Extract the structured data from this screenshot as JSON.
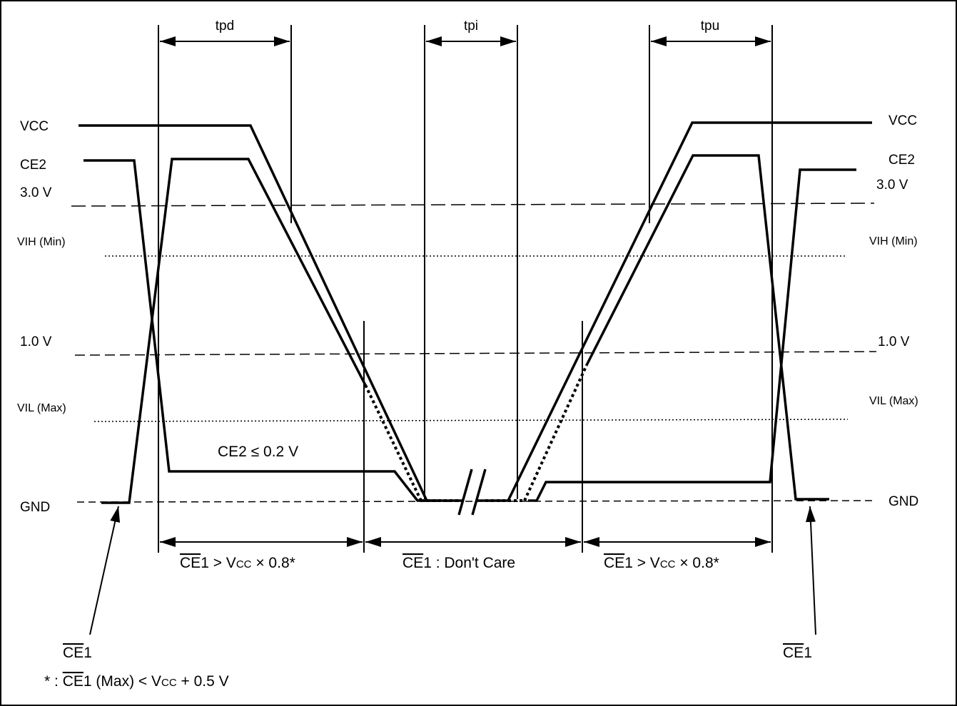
{
  "timing": {
    "tpd": "tpd",
    "tpi": "tpi",
    "tpu": "tpu"
  },
  "signals": {
    "vcc": "VCC",
    "ce2": "CE2"
  },
  "levels": {
    "v3": "3.0 V",
    "vih": "VIH (Min)",
    "v1": "1.0 V",
    "vil": "VIL (Max)",
    "gnd": "GND"
  },
  "annotations": {
    "ce2_low": "CE2 ≤ 0.2 V",
    "ce1_bar": "CE",
    "ce1_suffix": "1",
    "left_cond_rest": " > V",
    "vcc_sub": "CC",
    "cond_tail": " × 0.8*",
    "mid_cond_rest": " : Don't Care",
    "footnote_prefix": "* : ",
    "footnote_mid": " (Max) < V",
    "footnote_tail": " + 0.5 V"
  }
}
